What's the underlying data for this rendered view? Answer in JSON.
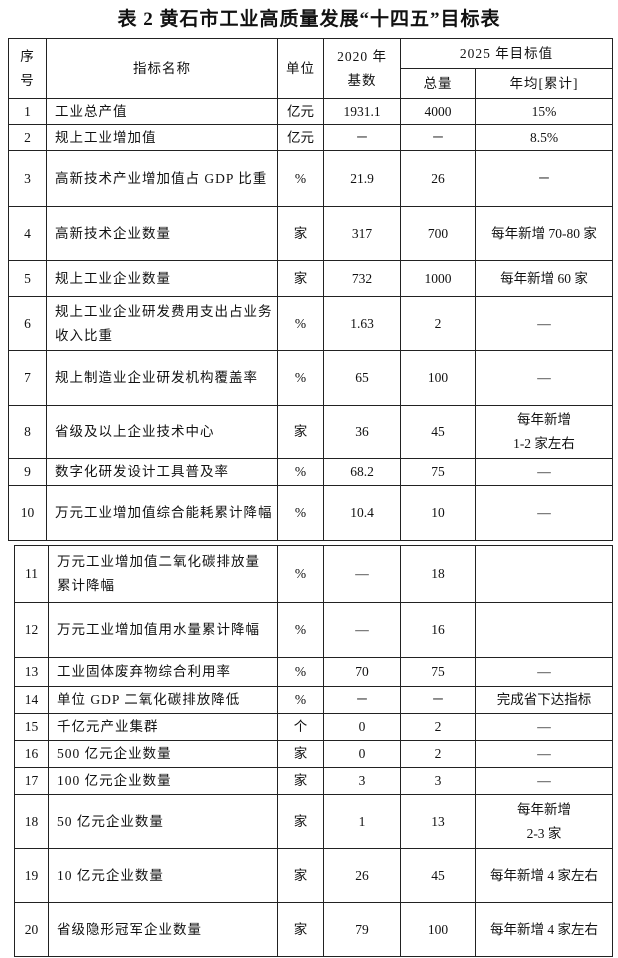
{
  "title": "表 2 黄石市工业高质量发展“十四五”目标表",
  "header": {
    "no": "序\n号",
    "name": "指标名称",
    "unit": "单位",
    "base": "2020 年\n基数",
    "target": "2025 年目标值",
    "total": "总量",
    "annual": "年均[累计]"
  },
  "rows": [
    [
      "1",
      "工业总产值",
      "亿元",
      "1931.1",
      "4000",
      "15%"
    ],
    [
      "2",
      "规上工业增加值",
      "亿元",
      "－",
      "－",
      "8.5%"
    ],
    [
      "3",
      "高新技术产业增加值占 GDP 比重",
      "%",
      "21.9",
      "26",
      "－"
    ],
    [
      "4",
      "高新技术企业数量",
      "家",
      "317",
      "700",
      "每年新增 70-80 家"
    ],
    [
      "5",
      "规上工业企业数量",
      "家",
      "732",
      "1000",
      "每年新增 60 家"
    ],
    [
      "6",
      "规上工业企业研发费用支出占业务收入比重",
      "%",
      "1.63",
      "2",
      "—"
    ],
    [
      "7",
      "规上制造业企业研发机构覆盖率",
      "%",
      "65",
      "100",
      "—"
    ],
    [
      "8",
      "省级及以上企业技术中心",
      "家",
      "36",
      "45",
      "每年新增\n1-2 家左右"
    ],
    [
      "9",
      "数字化研发设计工具普及率",
      "%",
      "68.2",
      "75",
      "—"
    ],
    [
      "10",
      "万元工业增加值综合能耗累计降幅",
      "%",
      "10.4",
      "10",
      "—"
    ],
    [
      "11",
      "万元工业增加值二氧化碳排放量累计降幅",
      "%",
      "—",
      "18"
    ],
    [
      "12",
      "万元工业增加值用水量累计降幅",
      "%",
      "—",
      "16"
    ],
    [
      "13",
      "工业固体废弃物综合利用率",
      "%",
      "70",
      "75",
      "—"
    ],
    [
      "14",
      "单位 GDP 二氧化碳排放降低",
      "%",
      "－",
      "－",
      "完成省下达指标"
    ],
    [
      "15",
      "千亿元产业集群",
      "个",
      "0",
      "2",
      "—"
    ],
    [
      "16",
      "500 亿元企业数量",
      "家",
      "0",
      "2",
      "—"
    ],
    [
      "17",
      "100 亿元企业数量",
      "家",
      "3",
      "3",
      "—"
    ],
    [
      "18",
      "50 亿元企业数量",
      "家",
      "1",
      "13",
      "每年新增\n2-3 家"
    ],
    [
      "19",
      "10 亿元企业数量",
      "家",
      "26",
      "45",
      "每年新增 4 家左右"
    ],
    [
      "20",
      "省级隐形冠军企业数量",
      "家",
      "79",
      "100",
      "每年新增 4 家左右"
    ]
  ]
}
